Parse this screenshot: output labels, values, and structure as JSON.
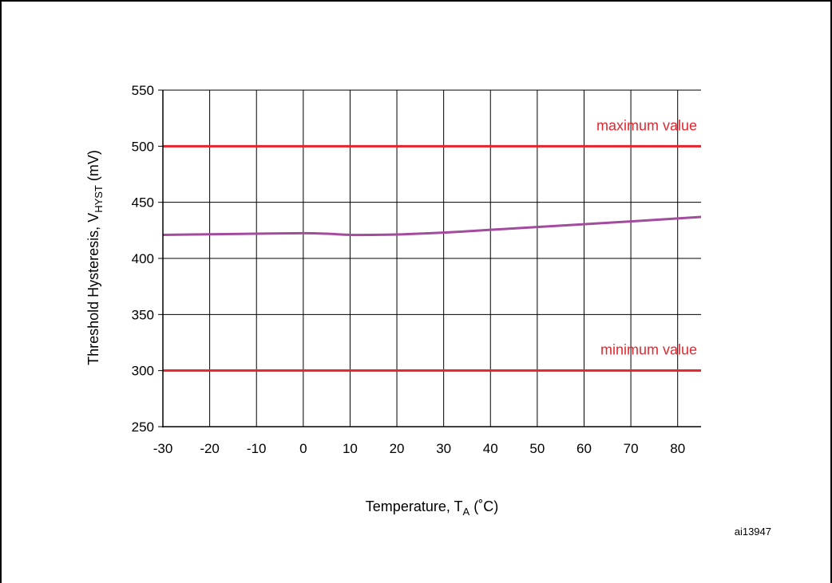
{
  "chart_data": {
    "type": "line",
    "xlabel": {
      "main": "Temperature, T",
      "sub": "A",
      "unit": " (˚C)"
    },
    "ylabel": {
      "main": "Threshold Hysteresis, V",
      "sub": "HYST",
      "unit": " (mV)"
    },
    "xlim": [
      -30,
      85
    ],
    "ylim": [
      250,
      550
    ],
    "x_ticks": [
      -30,
      -20,
      -10,
      0,
      10,
      20,
      30,
      40,
      50,
      60,
      70,
      80
    ],
    "y_ticks": [
      250,
      300,
      350,
      400,
      450,
      500,
      550
    ],
    "grid": true,
    "series": [
      {
        "x": [
          -30,
          -20,
          -10,
          0,
          5,
          10,
          15,
          20,
          30,
          40,
          50,
          60,
          70,
          85
        ],
        "y": [
          421,
          421.5,
          422,
          422.5,
          422,
          421,
          421,
          421.3,
          423,
          425.5,
          428,
          430.5,
          433,
          437
        ],
        "color": "#a34c9e"
      }
    ],
    "reference_lines": [
      {
        "y": 500,
        "label": "maximum value",
        "color": "#e3262e"
      },
      {
        "y": 300,
        "label": "minimum value",
        "color": "#e3262e"
      }
    ],
    "figure_id": "ai13947"
  }
}
